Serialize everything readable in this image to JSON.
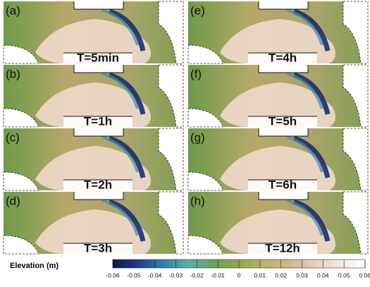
{
  "panels": [
    {
      "label": "(a)",
      "time": "T=5min"
    },
    {
      "label": "(b)",
      "time": "T=1h"
    },
    {
      "label": "(c)",
      "time": "T=2h"
    },
    {
      "label": "(d)",
      "time": "T=3h"
    },
    {
      "label": "(e)",
      "time": "T=4h"
    },
    {
      "label": "(f)",
      "time": "T=5h"
    },
    {
      "label": "(g)",
      "time": "T=6h"
    },
    {
      "label": "(h)",
      "time": "T=12h"
    }
  ],
  "colorbar": {
    "label": "Elevation (m)",
    "lim": [
      -0.06,
      0.06
    ],
    "ticks": [
      -0.06,
      -0.05,
      -0.04,
      -0.03,
      -0.02,
      -0.01,
      0,
      0.01,
      0.02,
      0.03,
      0.04,
      0.05,
      0.06
    ],
    "colormap": [
      "#14124a",
      "#233c8c",
      "#2f7fa8",
      "#58b0a8",
      "#6aa25a",
      "#8caa4a",
      "#b9b46a",
      "#d4b48c",
      "#e8cdbc",
      "#f5e6e0",
      "#ffffff"
    ]
  }
}
